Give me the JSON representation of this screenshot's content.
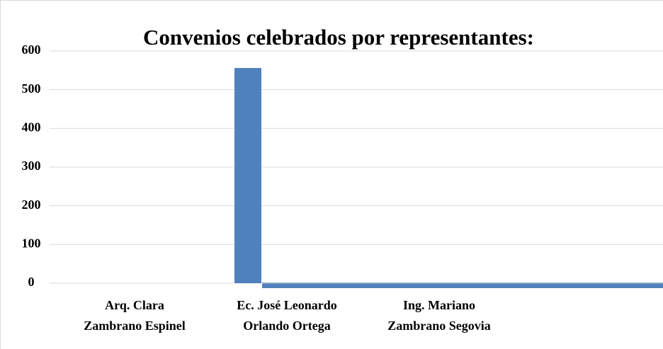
{
  "chart_data": {
    "type": "bar",
    "title": "Convenios celebrados por representantes:",
    "categories": [
      [
        "Arq. Clara",
        "Zambrano Espinel"
      ],
      [
        "Ec. José Leonardo",
        "Orlando Ortega"
      ],
      [
        "Ing. Mariano",
        "Zambrano Segovia"
      ]
    ],
    "values": [
      0,
      556,
      0
    ],
    "color": "#4f81bd",
    "ylim": [
      0,
      600
    ],
    "yticks": [
      0,
      100,
      200,
      300,
      400,
      500,
      600
    ],
    "grid": true
  }
}
